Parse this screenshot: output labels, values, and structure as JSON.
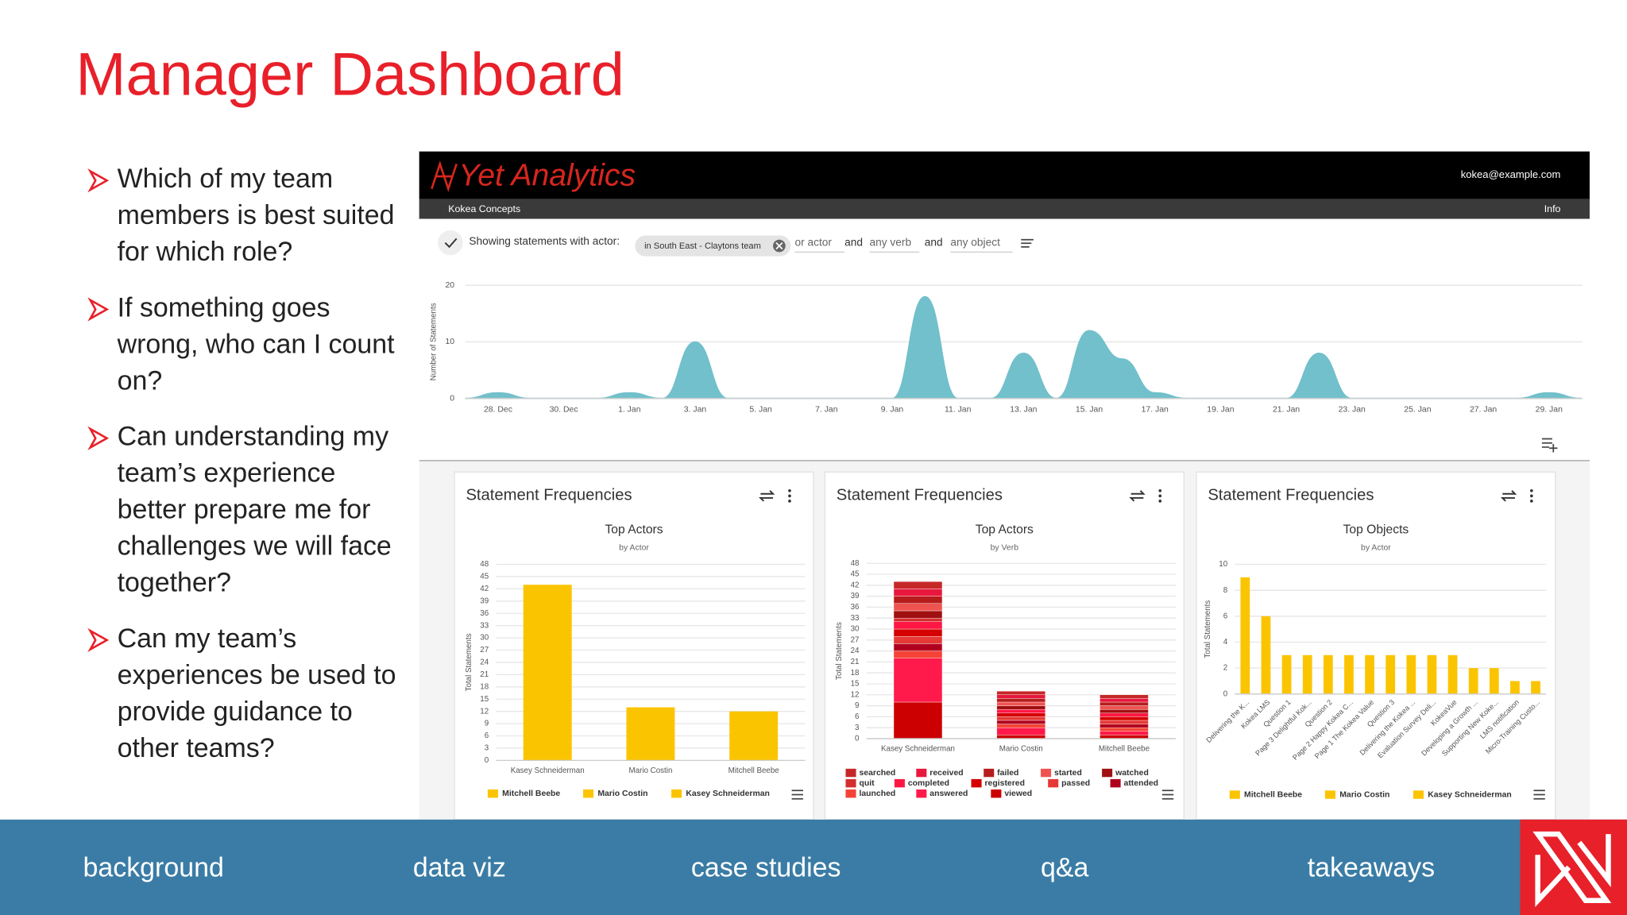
{
  "slide": {
    "title": "Manager Dashboard",
    "bullets": [
      [
        "Which of my team",
        "members is best suited",
        "for which role?"
      ],
      [
        "If something goes",
        "wrong, who can I count",
        "on?"
      ],
      [
        "Can understanding my",
        "team’s experience",
        "better prepare me for",
        "challenges we will face",
        "together?"
      ],
      [
        "Can my team’s",
        "experiences be used to",
        "provide guidance to",
        "other teams?"
      ]
    ],
    "nav": [
      "background",
      "data viz",
      "case studies",
      "q&a",
      "takeaways"
    ]
  },
  "dashboard": {
    "brand": "Yet Analytics",
    "user": "kokea@example.com",
    "org": "Kokea Concepts",
    "info": "Info",
    "filter": {
      "label": "Showing statements with actor:",
      "chip": "in South East - Claytons team",
      "terms": [
        "or actor",
        "and",
        "any verb",
        "and",
        "any object"
      ]
    },
    "timeline": {
      "type": "area",
      "y_label": "Number of Statements",
      "categories": [
        null,
        "28. Dec",
        null,
        "30. Dec",
        null,
        "1. Jan",
        null,
        "3. Jan",
        null,
        "5. Jan",
        null,
        "7. Jan",
        null,
        "9. Jan",
        null,
        "11. Jan",
        null,
        "13. Jan",
        null,
        "15. Jan",
        null,
        "17. Jan",
        null,
        "19. Jan",
        null,
        "21. Jan",
        null,
        "23. Jan",
        null,
        "25. Jan",
        null,
        "27. Jan",
        null,
        "29. Jan",
        null
      ],
      "values": [
        0,
        1,
        0,
        0,
        0,
        1,
        0,
        10,
        0,
        0,
        0,
        0,
        0,
        0,
        18,
        0,
        0,
        8,
        0,
        12,
        7,
        1,
        0,
        0,
        0,
        0,
        8,
        0,
        0,
        0,
        0,
        0,
        0,
        1,
        0
      ],
      "color": "#71c0cb",
      "ylim": [
        0,
        20
      ],
      "yticks": [
        0,
        10,
        20
      ],
      "grid": true
    },
    "panels": [
      {
        "heading": "Statement Frequencies",
        "chart": {
          "type": "bar",
          "title": "Top Actors",
          "subtitle": "by Actor",
          "y_label": "Total Statements",
          "categories": [
            "Kasey Schneiderman",
            "Mario Costin",
            "Mitchell Beebe"
          ],
          "values": [
            43,
            13,
            12
          ],
          "color": "#fbc400",
          "ylim": [
            0,
            48
          ],
          "yticks": [
            0,
            3,
            6,
            9,
            12,
            15,
            18,
            21,
            24,
            27,
            30,
            33,
            36,
            39,
            42,
            45,
            48
          ],
          "grid": true,
          "legend": [
            "Mitchell Beebe",
            "Mario Costin",
            "Kasey Schneiderman"
          ]
        }
      },
      {
        "heading": "Statement Frequencies",
        "chart": {
          "type": "stacked_bar",
          "title": "Top Actors",
          "subtitle": "by Verb",
          "y_label": "Total Statements",
          "categories": [
            "Kasey Schneiderman",
            "Mario Costin",
            "Mitchell Beebe"
          ],
          "series": [
            {
              "name": "searched",
              "color": "#c62828",
              "values": [
                2,
                1,
                1
              ]
            },
            {
              "name": "received",
              "color": "#e8173d",
              "values": [
                2,
                1,
                1
              ]
            },
            {
              "name": "failed",
              "color": "#b71c1c",
              "values": [
                2,
                1,
                1
              ]
            },
            {
              "name": "started",
              "color": "#ef5350",
              "values": [
                2,
                1,
                1
              ]
            },
            {
              "name": "watched",
              "color": "#a01010",
              "values": [
                2,
                1,
                1
              ]
            },
            {
              "name": "quit",
              "color": "#d32f2f",
              "values": [
                1,
                0,
                0
              ]
            },
            {
              "name": "completed",
              "color": "#ff1744",
              "values": [
                2,
                1,
                1
              ]
            },
            {
              "name": "registered",
              "color": "#d50000",
              "values": [
                2,
                1,
                1
              ]
            },
            {
              "name": "passed",
              "color": "#e53935",
              "values": [
                2,
                1,
                1
              ]
            },
            {
              "name": "attended",
              "color": "#b0001e",
              "values": [
                2,
                1,
                1
              ]
            },
            {
              "name": "launched",
              "color": "#f44336",
              "values": [
                2,
                1,
                1
              ]
            },
            {
              "name": "answered",
              "color": "#ff1a4b",
              "values": [
                12,
                2,
                1
              ]
            },
            {
              "name": "viewed",
              "color": "#cc0000",
              "values": [
                10,
                1,
                1
              ]
            }
          ],
          "ylim": [
            0,
            48
          ],
          "yticks": [
            0,
            3,
            6,
            9,
            12,
            15,
            18,
            21,
            24,
            27,
            30,
            33,
            36,
            39,
            42,
            45,
            48
          ],
          "grid": true
        }
      },
      {
        "heading": "Statement Frequencies",
        "chart": {
          "type": "bar",
          "title": "Top Objects",
          "subtitle": "by Actor",
          "y_label": "Total Statements",
          "categories": [
            "Delivering the K...",
            "Kokea LMS",
            "Question 1",
            "Page 3 Delightful Kok...",
            "Question 2",
            "Page 2 Happy Kokea C...",
            "Page 1 The Kokea Value",
            "Question 3",
            "Delivering the Kokea ...",
            "Evaluation Survey Deli...",
            "KokeaVue",
            "Developing a Growth ...",
            "Supporting New Koke...",
            "LMS notification",
            "Micro-Training Custo..."
          ],
          "values": [
            9,
            6,
            3,
            3,
            3,
            3,
            3,
            3,
            3,
            3,
            3,
            2,
            2,
            1,
            1
          ],
          "color": "#fbc400",
          "ylim": [
            0,
            10
          ],
          "yticks": [
            0,
            2,
            4,
            6,
            8,
            10
          ],
          "grid": true,
          "legend": [
            "Mitchell Beebe",
            "Mario Costin",
            "Kasey Schneiderman"
          ]
        }
      }
    ]
  }
}
